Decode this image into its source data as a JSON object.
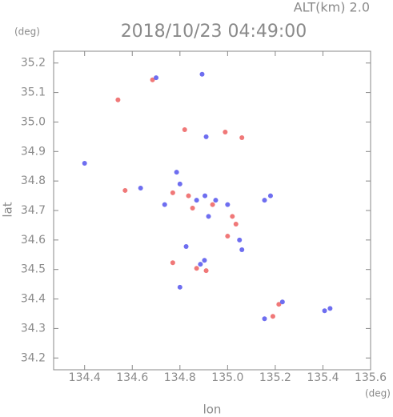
{
  "chart_data": {
    "type": "scatter",
    "title": "2018/10/23 04:49:00",
    "subtitle": "ALT(km) 2.0",
    "y_unit": "(deg)",
    "x_unit": "(deg)",
    "x_label": "lon",
    "y_label": "lat",
    "xlim": [
      134.27,
      135.6
    ],
    "ylim": [
      34.16,
      35.24
    ],
    "xticks": [
      134.4,
      134.6,
      134.8,
      {
        "value": 135,
        "label": "135.0"
      },
      135.2,
      135.4,
      135.6
    ],
    "yticks": [
      34.2,
      34.3,
      34.4,
      34.5,
      34.6,
      34.7,
      34.8,
      34.9,
      {
        "value": 35,
        "label": "35.0"
      },
      35.1,
      35.2
    ],
    "series": [
      {
        "color": "#f07878",
        "x": [
          134.685,
          134.82,
          134.57,
          134.77,
          134.836,
          134.937,
          135.02,
          135.0,
          135.035,
          134.853,
          134.87,
          134.91,
          134.77,
          135.19,
          135.215,
          135.06,
          134.54,
          134.99
        ],
        "values": [
          35.143,
          34.974,
          34.768,
          34.76,
          34.75,
          34.72,
          34.68,
          34.613,
          34.654,
          34.708,
          34.504,
          34.496,
          34.523,
          34.341,
          34.382,
          34.947,
          35.075,
          34.966
        ]
      },
      {
        "color": "#6e6ef0",
        "x": [
          134.7,
          134.893,
          134.91,
          134.4,
          134.635,
          134.786,
          134.8,
          134.87,
          134.905,
          134.95,
          135.0,
          135.05,
          135.06,
          134.92,
          134.736,
          135.155,
          135.18,
          134.903,
          134.886,
          134.8,
          134.826,
          135.155,
          135.23,
          135.407,
          135.43
        ],
        "values": [
          35.15,
          35.162,
          34.95,
          34.86,
          34.776,
          34.83,
          34.79,
          34.735,
          34.75,
          34.735,
          34.72,
          34.6,
          34.567,
          34.68,
          34.72,
          34.735,
          34.75,
          34.531,
          34.518,
          34.44,
          34.578,
          34.333,
          34.39,
          34.36,
          34.368
        ]
      }
    ]
  }
}
